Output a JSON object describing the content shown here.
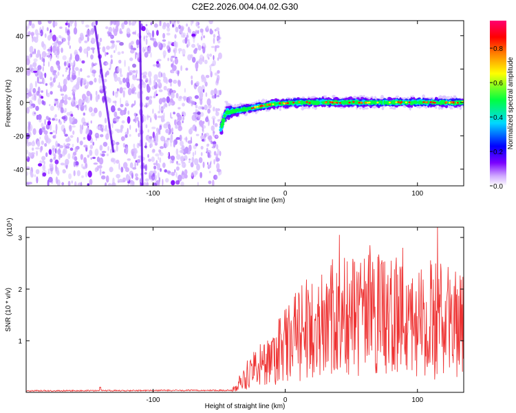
{
  "title": "C2E2.2026.004.04.02.G30",
  "chart_data": [
    {
      "type": "heatmap",
      "name": "spectrogram",
      "xlabel": "Height of straight line (km)",
      "ylabel": "Frequency (Hz)",
      "xlim": [
        -196,
        135
      ],
      "ylim": [
        -50,
        49
      ],
      "xticks": [
        -100,
        0,
        100
      ],
      "yticks": [
        -40,
        -20,
        0,
        20,
        40
      ],
      "colorbar": {
        "label": "Normalized spectral amplitude",
        "range": [
          0,
          0.96
        ],
        "ticks": [
          "0.0",
          "0.2",
          "0.4",
          "0.6",
          "0.8"
        ],
        "tick_values": [
          0,
          0.2,
          0.4,
          0.6,
          0.8
        ],
        "colors": [
          "#ffffff",
          "#cfa8ff",
          "#7a00ff",
          "#0000ff",
          "#00d8ff",
          "#00ff40",
          "#ffff00",
          "#ff8000",
          "#ff0000",
          "#ff0070"
        ]
      },
      "ridge": [
        {
          "x": -49,
          "y": -17
        },
        {
          "x": -45,
          "y": -6
        },
        {
          "x": -30,
          "y": -4
        },
        {
          "x": -10,
          "y": -1
        },
        {
          "x": 10,
          "y": 0
        },
        {
          "x": 50,
          "y": 0
        },
        {
          "x": 100,
          "y": 0
        },
        {
          "x": 135,
          "y": 0
        }
      ],
      "noise_region_x": [
        -196,
        -49
      ],
      "streaks": [
        {
          "x1": -144,
          "y1": 46,
          "x2": -130,
          "y2": -30
        },
        {
          "x1": -110,
          "y1": 49,
          "x2": -108,
          "y2": -50
        }
      ]
    },
    {
      "type": "line",
      "name": "snr",
      "xlabel": "Height of straight line (km)",
      "ylabel": "SNR (10 * v/v)",
      "scale_label": "(x10⁴)",
      "xlim": [
        -196,
        135
      ],
      "ylim": [
        0,
        3.2
      ],
      "xticks": [
        -100,
        0,
        100
      ],
      "yticks": [
        1,
        2,
        3
      ],
      "color": "#ee3333",
      "profile": [
        {
          "x": -196,
          "y": 0.03
        },
        {
          "x": -40,
          "y": 0.04
        },
        {
          "x": -33,
          "y": 0.25
        },
        {
          "x": -25,
          "y": 0.5
        },
        {
          "x": -10,
          "y": 0.7
        },
        {
          "x": 0,
          "y": 1.0
        },
        {
          "x": 15,
          "y": 1.3
        },
        {
          "x": 30,
          "y": 1.55
        },
        {
          "x": 60,
          "y": 1.6
        },
        {
          "x": 100,
          "y": 1.55
        },
        {
          "x": 135,
          "y": 1.45
        }
      ],
      "peaks": [
        {
          "x": 41,
          "y": 3.05
        },
        {
          "x": 115,
          "y": 3.2
        },
        {
          "x": 64,
          "y": 2.85
        },
        {
          "x": 89,
          "y": 2.8
        }
      ]
    }
  ]
}
